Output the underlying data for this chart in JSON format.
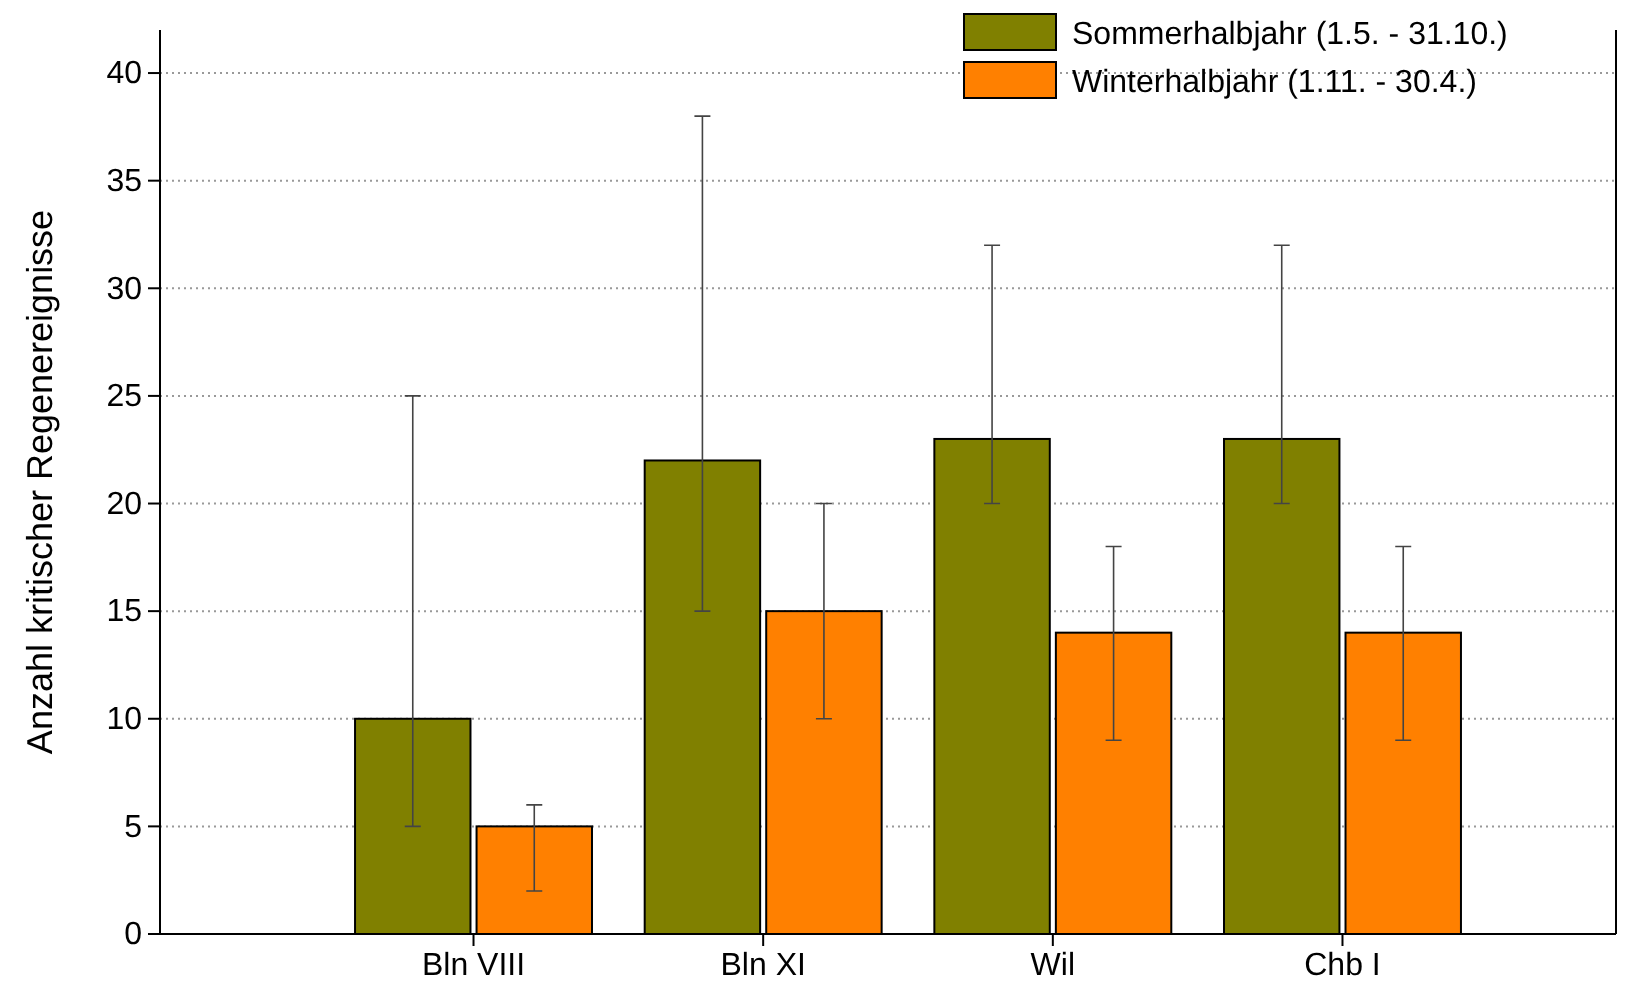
{
  "chart_data": {
    "type": "bar",
    "ylabel": "Anzahl kritischer Regenereignisse",
    "categories": [
      "Bln VIII",
      "Bln XI",
      "Wil",
      "Chb I"
    ],
    "series": [
      {
        "name": "Sommerhalbjahr (1.5. - 31.10.)",
        "color": "#808000",
        "values": [
          10,
          22,
          23,
          23
        ],
        "errors": [
          [
            5,
            25
          ],
          [
            15,
            38
          ],
          [
            20,
            32
          ],
          [
            20,
            32
          ]
        ]
      },
      {
        "name": "Winterhalbjahr (1.11. - 30.4.)",
        "color": "#ff8000",
        "values": [
          5,
          15,
          14,
          14
        ],
        "errors": [
          [
            2,
            6
          ],
          [
            10,
            20
          ],
          [
            9,
            18
          ],
          [
            9,
            18
          ]
        ]
      }
    ],
    "ylim": [
      0,
      42
    ],
    "yticks": [
      0,
      5,
      10,
      15,
      20,
      25,
      30,
      35,
      40
    ],
    "grid": "y",
    "legend": "top right"
  }
}
